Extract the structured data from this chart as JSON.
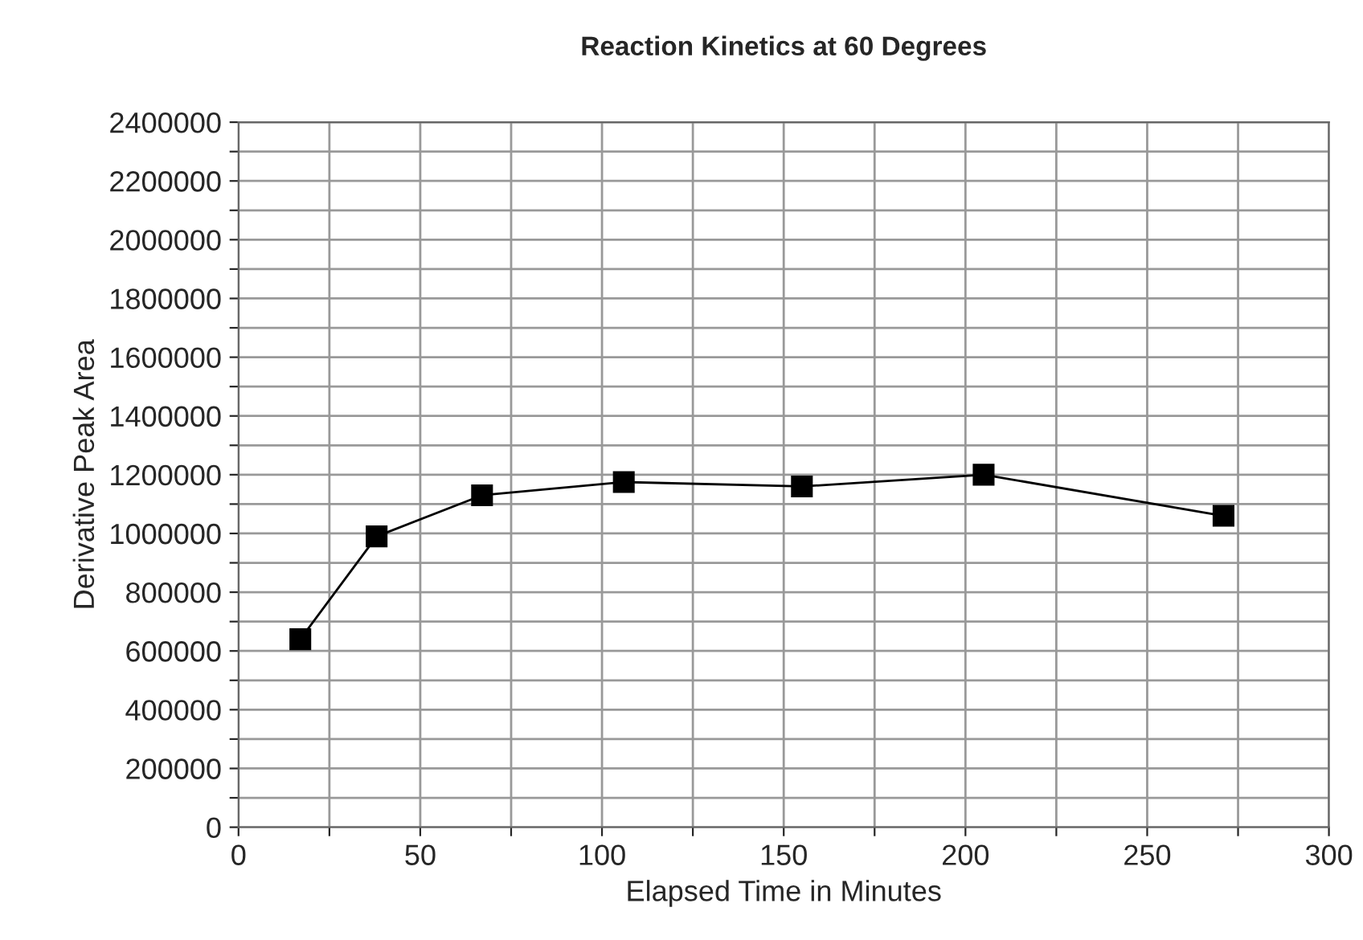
{
  "chart_data": {
    "type": "line",
    "title": "Reaction Kinetics at 60 Degrees",
    "xlabel": "Elapsed Time in Minutes",
    "ylabel": "Derivative Peak Area",
    "x": [
      17,
      38,
      67,
      106,
      155,
      205,
      271
    ],
    "series": [
      {
        "color": "#000000",
        "values": [
          640000,
          990000,
          1130000,
          1175000,
          1160000,
          1200000,
          1060000
        ]
      }
    ],
    "xlim": [
      0,
      300
    ],
    "xticks": [
      0,
      {
        "value": 25,
        "label": null
      },
      50,
      {
        "value": 75,
        "label": null
      },
      100,
      {
        "value": 125,
        "label": null
      },
      150,
      {
        "value": 175,
        "label": null
      },
      200,
      {
        "value": 225,
        "label": null
      },
      250,
      {
        "value": 275,
        "label": null
      },
      300
    ],
    "ylim": [
      0,
      2400000
    ],
    "yticks": [
      0,
      {
        "value": 100000,
        "label": null
      },
      200000,
      {
        "value": 300000,
        "label": null
      },
      400000,
      {
        "value": 500000,
        "label": null
      },
      600000,
      {
        "value": 700000,
        "label": null
      },
      800000,
      {
        "value": 900000,
        "label": null
      },
      1000000,
      {
        "value": 1100000,
        "label": null
      },
      1200000,
      {
        "value": 1300000,
        "label": null
      },
      1400000,
      {
        "value": 1500000,
        "label": null
      },
      1600000,
      {
        "value": 1700000,
        "label": null
      },
      1800000,
      {
        "value": 1900000,
        "label": null
      },
      2000000,
      {
        "value": 2100000,
        "label": null
      },
      2200000,
      {
        "value": 2300000,
        "label": null
      },
      2400000
    ],
    "grid": true,
    "marker": "square",
    "line_style": "solid",
    "legend": false
  }
}
